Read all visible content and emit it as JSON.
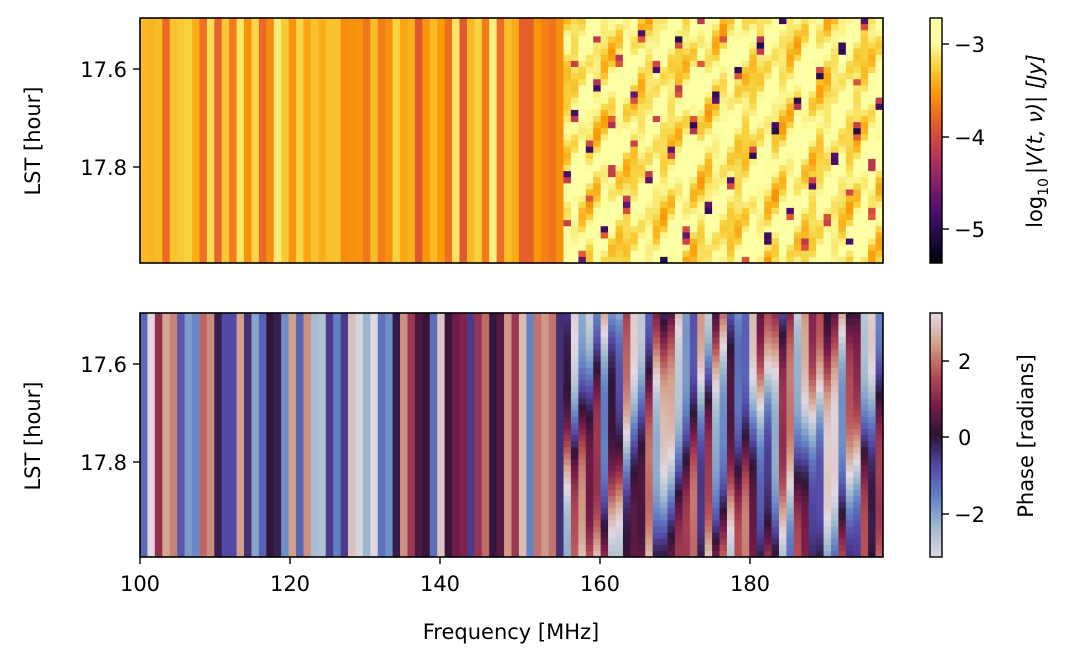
{
  "chart_data": [
    {
      "type": "heatmap",
      "panel": "amplitude",
      "title": "",
      "xlabel": "",
      "ylabel": "LST [hour]",
      "xlim": [
        100,
        199
      ],
      "ylim": [
        17.995,
        17.505
      ],
      "y_ticks": [
        17.6,
        17.8
      ],
      "y_tick_labels": [
        "17.6",
        "17.8"
      ],
      "x_axis_visible": false,
      "grid": false,
      "colormap": "inferno",
      "colorbar": {
        "label_prefix": "log",
        "label_sub": "10",
        "label_main": "|V(t, ν)| [Jy]",
        "range": [
          -5.4,
          -2.75
        ],
        "ticks": [
          -3,
          -4,
          -5
        ],
        "tick_labels": [
          "−3",
          "−4",
          "−5"
        ]
      },
      "approx_channel_values": {
        "note_range_100_157MHz": "time-constant vertical stripes, log10 amplitude ~ -4.1 to -3.1",
        "range_157_199MHz": "fringing structure, mostly -3.4 to -2.8 with isolated nulls down to -5.3"
      }
    },
    {
      "type": "heatmap",
      "panel": "phase",
      "title": "",
      "xlabel": "Frequency [MHz]",
      "ylabel": "LST [hour]",
      "xlim": [
        100,
        199
      ],
      "ylim": [
        17.995,
        17.505
      ],
      "x_ticks": [
        100,
        120,
        140,
        160,
        180
      ],
      "x_tick_labels": [
        "100",
        "120",
        "140",
        "160",
        "180"
      ],
      "y_ticks": [
        17.6,
        17.8
      ],
      "y_tick_labels": [
        "17.6",
        "17.8"
      ],
      "grid": false,
      "colormap": "twilight",
      "colorbar": {
        "label": "Phase [radians]",
        "range": [
          -3.14159,
          3.14159
        ],
        "ticks": [
          2,
          0,
          -2
        ],
        "tick_labels": [
          "2",
          "0",
          "−2"
        ]
      },
      "approx_channel_values": {
        "note_range_100_157MHz": "time-constant vertical stripes of phase spanning -pi to pi",
        "range_157_199MHz": "rapidly varying phase with diagonal wrapping structure"
      }
    }
  ]
}
